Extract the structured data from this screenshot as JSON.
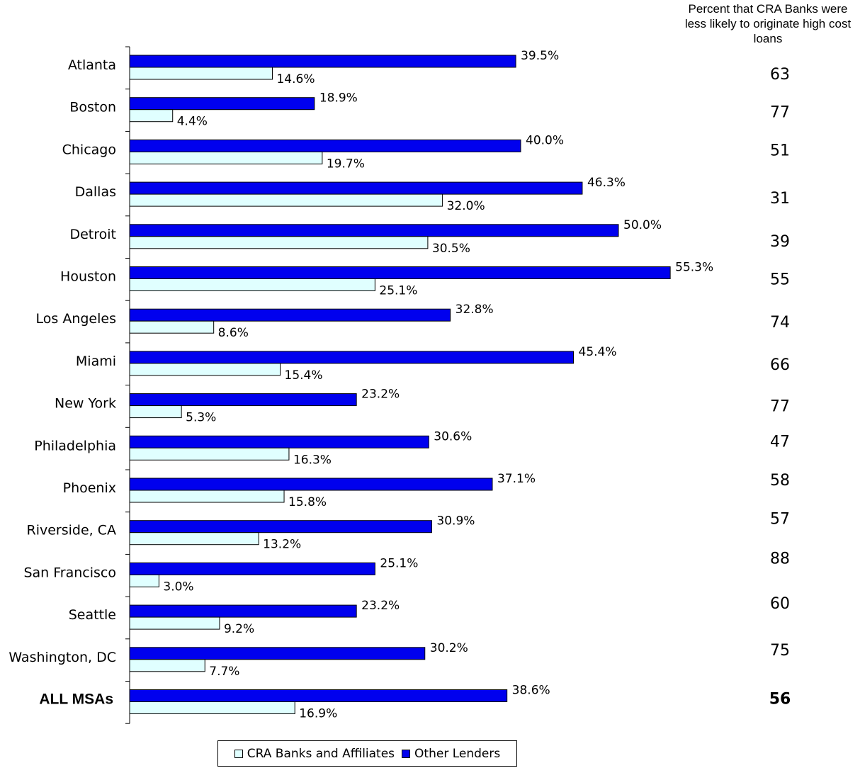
{
  "chart_data": {
    "type": "bar",
    "orientation": "horizontal",
    "categories": [
      "Atlanta",
      "Boston",
      "Chicago",
      "Dallas",
      "Detroit",
      "Houston",
      "Los Angeles",
      "Miami",
      "New York",
      "Philadelphia",
      "Phoenix",
      "Riverside, CA",
      "San Francisco",
      "Seattle",
      "Washington, DC",
      "ALL MSAs"
    ],
    "series": [
      {
        "name": "Other Lenders",
        "color": "#0000ee",
        "values": [
          39.5,
          18.9,
          40.0,
          46.3,
          50.0,
          55.3,
          32.8,
          45.4,
          23.2,
          30.6,
          37.1,
          30.9,
          25.1,
          23.2,
          30.2,
          38.6
        ],
        "labels": [
          "39.5%",
          "18.9%",
          "40.0%",
          "46.3%",
          "50.0%",
          "55.3%",
          "32.8%",
          "45.4%",
          "23.2%",
          "30.6%",
          "37.1%",
          "30.9%",
          "25.1%",
          "23.2%",
          "30.2%",
          "38.6%"
        ]
      },
      {
        "name": "CRA Banks and Affiliates",
        "color": "#e0ffff",
        "values": [
          14.6,
          4.4,
          19.7,
          32.0,
          30.5,
          25.1,
          8.6,
          15.4,
          5.3,
          16.3,
          15.8,
          13.2,
          3.0,
          9.2,
          7.7,
          16.9
        ],
        "labels": [
          "14.6%",
          "4.4%",
          "19.7%",
          "32.0%",
          "30.5%",
          "25.1%",
          "8.6%",
          "15.4%",
          "5.3%",
          "16.3%",
          "15.8%",
          "13.2%",
          "3.0%",
          "9.2%",
          "7.7%",
          "16.9%"
        ]
      }
    ],
    "xlim": [
      0,
      60
    ],
    "grid": false,
    "legend_position": "bottom",
    "legend": [
      "CRA Banks and Affiliates",
      "Other Lenders"
    ],
    "side_column": {
      "heading": "Percent that CRA Banks were less likely to originate high cost loans",
      "values": [
        "63",
        "77",
        "51",
        "31",
        "39",
        "55",
        "74",
        "66",
        "77",
        "47",
        "58",
        "57",
        "88",
        "60",
        "75",
        "56"
      ]
    }
  }
}
